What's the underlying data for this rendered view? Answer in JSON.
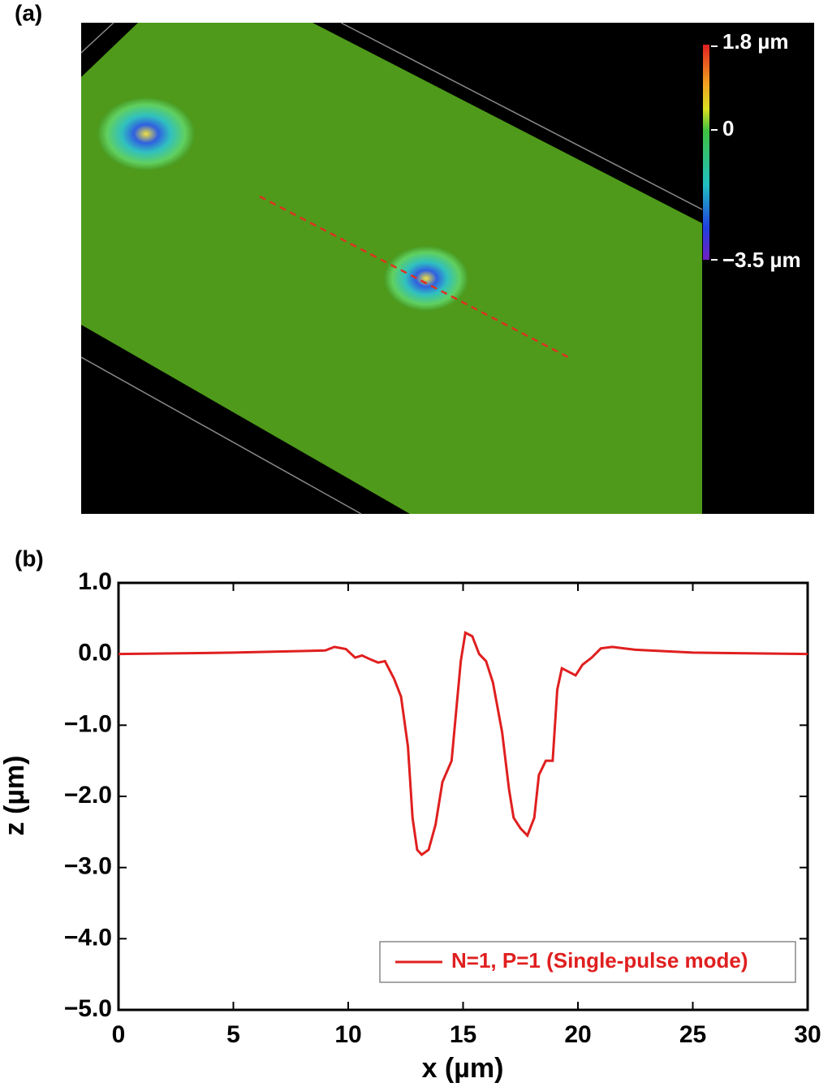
{
  "panel_a": {
    "label": "(a)",
    "colorbar_labels": [
      "1.8 µm",
      "0",
      "−3.5 µm"
    ]
  },
  "chart_data": {
    "type": "line",
    "panel_label": "(b)",
    "x_label": "x (µm)",
    "y_label": "z (µm)",
    "xlim": [
      0,
      30
    ],
    "ylim": [
      -5,
      1
    ],
    "xticks": [
      0,
      5,
      10,
      15,
      20,
      25,
      30
    ],
    "yticks": [
      {
        "value": 1,
        "label": "1.0"
      },
      {
        "value": 0,
        "label": "0.0"
      },
      {
        "value": -1,
        "label": "−1.0"
      },
      {
        "value": -2,
        "label": "−2.0"
      },
      {
        "value": -3,
        "label": "−3.0"
      },
      {
        "value": -4,
        "label": "−4.0"
      },
      {
        "value": -5,
        "label": "−5.0"
      }
    ],
    "legend": "lower right",
    "x": [
      0,
      5,
      9,
      9.4,
      9.9,
      10.3,
      10.6,
      11,
      11.3,
      11.6,
      12,
      12.3,
      12.6,
      12.8,
      13,
      13.2,
      13.5,
      13.8,
      14.1,
      14.5,
      14.7,
      14.9,
      15.1,
      15.4,
      15.7,
      16,
      16.3,
      16.7,
      17,
      17.2,
      17.5,
      17.8,
      18.1,
      18.3,
      18.6,
      18.9,
      19.1,
      19.3,
      19.6,
      19.9,
      20.2,
      20.6,
      21,
      21.5,
      22.5,
      25,
      30
    ],
    "series": [
      {
        "name": "N=1, P=1 (Single-pulse mode)",
        "color": "#e01f1f",
        "values": [
          0,
          0.02,
          0.05,
          0.1,
          0.07,
          -0.05,
          -0.02,
          -0.08,
          -0.12,
          -0.1,
          -0.35,
          -0.6,
          -1.3,
          -2.3,
          -2.75,
          -2.82,
          -2.75,
          -2.4,
          -1.8,
          -1.5,
          -0.8,
          -0.1,
          0.3,
          0.25,
          0,
          -0.1,
          -0.4,
          -1.1,
          -1.9,
          -2.3,
          -2.45,
          -2.55,
          -2.3,
          -1.7,
          -1.5,
          -1.5,
          -0.5,
          -0.2,
          -0.25,
          -0.3,
          -0.15,
          -0.05,
          0.08,
          0.1,
          0.06,
          0.02,
          0
        ]
      }
    ]
  }
}
